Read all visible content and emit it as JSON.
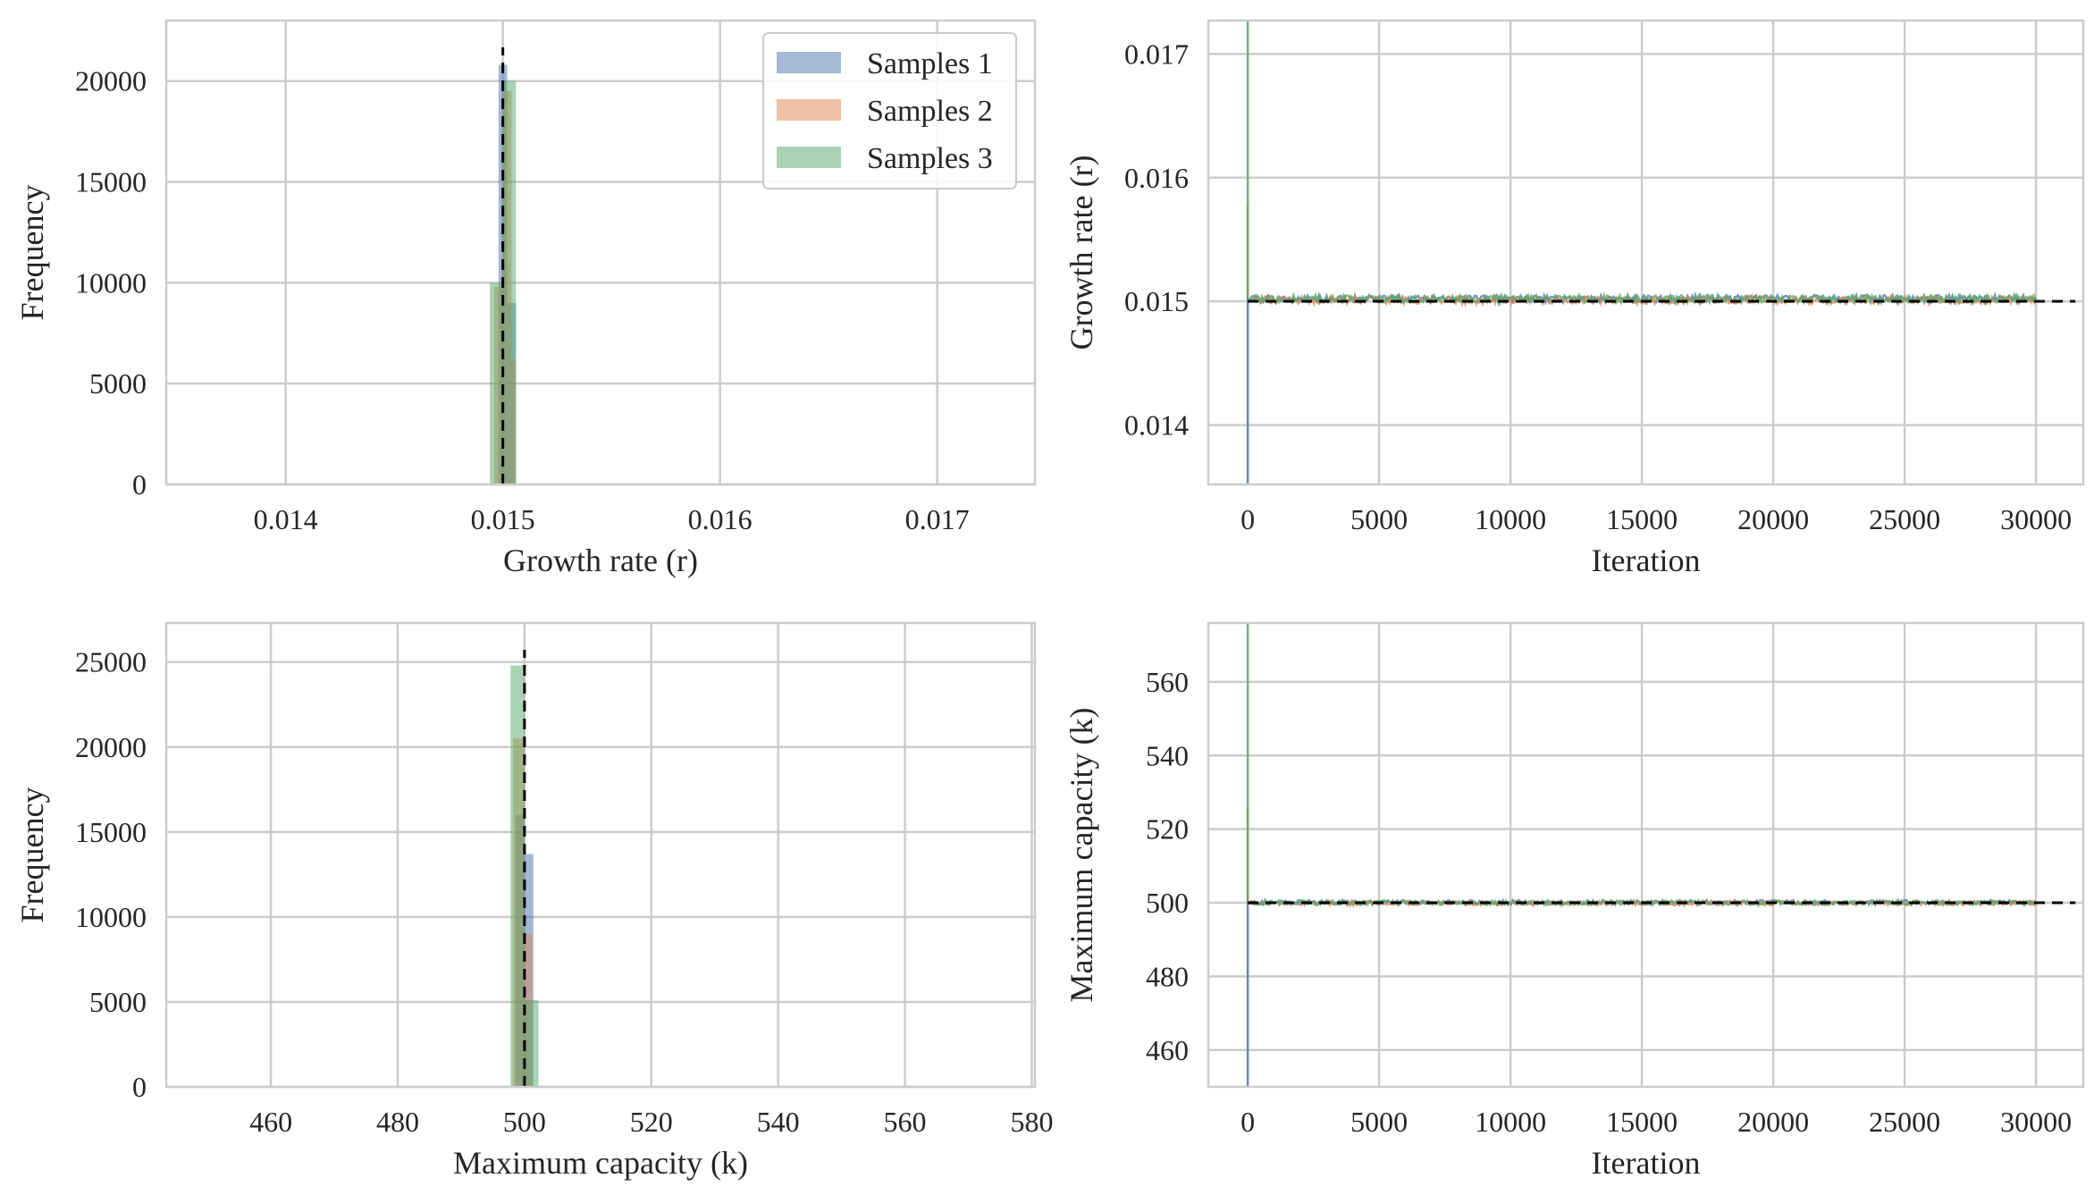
{
  "colors": {
    "Samples 1": "#4c72b0",
    "Samples 2": "#dd8452",
    "Samples 3": "#55a868"
  },
  "legend": {
    "placement": "top-right",
    "entries": [
      "Samples 1",
      "Samples 2",
      "Samples 3"
    ]
  },
  "chart_data": [
    {
      "type": "histogram",
      "xlabel": "Growth rate (r)",
      "ylabel": "Frequency",
      "xlim": [
        0.01345,
        0.01745
      ],
      "ylim": [
        0,
        23000
      ],
      "xticks": [
        "0.014",
        "0.015",
        "0.016",
        "0.017"
      ],
      "yticks": [
        "0",
        "5000",
        "10000",
        "15000",
        "20000"
      ],
      "grid": true,
      "reference_value": 0.015,
      "series": [
        {
          "name": "Samples 1",
          "bins": [
            {
              "x0": 0.01498,
              "x1": 0.01502,
              "count": 20800
            },
            {
              "x0": 0.01502,
              "x1": 0.01506,
              "count": 9000
            }
          ]
        },
        {
          "name": "Samples 2",
          "bins": [
            {
              "x0": 0.01496,
              "x1": 0.015,
              "count": 9800
            },
            {
              "x0": 0.015,
              "x1": 0.01504,
              "count": 19500
            },
            {
              "x0": 0.01504,
              "x1": 0.01506,
              "count": 6200
            }
          ]
        },
        {
          "name": "Samples 3",
          "bins": [
            {
              "x0": 0.01494,
              "x1": 0.015,
              "count": 10000
            },
            {
              "x0": 0.015,
              "x1": 0.01506,
              "count": 20000
            }
          ]
        }
      ]
    },
    {
      "type": "line",
      "xlabel": "Iteration",
      "ylabel": "Growth rate (r)",
      "xlim": [
        -1500,
        31800
      ],
      "ylim": [
        0.01352,
        0.01727
      ],
      "xticks": [
        "0",
        "5000",
        "10000",
        "15000",
        "20000",
        "25000",
        "30000"
      ],
      "yticks": [
        "0.014",
        "0.015",
        "0.016",
        "0.017"
      ],
      "grid": true,
      "reference_value": 0.015,
      "reference_range": [
        0,
        31500
      ],
      "n_iterations": 30000,
      "series": [
        {
          "name": "Samples 1",
          "start": 0.01352,
          "mean": 0.01502,
          "noise": 3e-05
        },
        {
          "name": "Samples 2",
          "start": 0.01578,
          "mean": 0.01501,
          "noise": 3e-05
        },
        {
          "name": "Samples 3",
          "start": 0.01727,
          "mean": 0.01502,
          "noise": 3e-05
        }
      ]
    },
    {
      "type": "histogram",
      "xlabel": "Maximum capacity (k)",
      "ylabel": "Frequency",
      "xlim": [
        443.5,
        580.5
      ],
      "ylim": [
        0,
        27300
      ],
      "xticks": [
        "460",
        "480",
        "500",
        "520",
        "540",
        "560",
        "580"
      ],
      "yticks": [
        "0",
        "5000",
        "10000",
        "15000",
        "20000",
        "25000"
      ],
      "grid": true,
      "reference_value": 500,
      "series": [
        {
          "name": "Samples 1",
          "bins": [
            {
              "x0": 498.6,
              "x1": 500.0,
              "count": 16000
            },
            {
              "x0": 500.0,
              "x1": 501.4,
              "count": 13700
            }
          ]
        },
        {
          "name": "Samples 2",
          "bins": [
            {
              "x0": 498.2,
              "x1": 500.0,
              "count": 20500
            },
            {
              "x0": 500.0,
              "x1": 501.2,
              "count": 9000
            }
          ]
        },
        {
          "name": "Samples 3",
          "bins": [
            {
              "x0": 497.8,
              "x1": 500.0,
              "count": 24800
            },
            {
              "x0": 500.0,
              "x1": 502.2,
              "count": 5100
            }
          ]
        }
      ]
    },
    {
      "type": "line",
      "xlabel": "Iteration",
      "ylabel": "Maximum capacity (k)",
      "xlim": [
        -1500,
        31800
      ],
      "ylim": [
        450,
        576
      ],
      "xticks": [
        "0",
        "5000",
        "10000",
        "15000",
        "20000",
        "25000",
        "30000"
      ],
      "yticks": [
        "460",
        "480",
        "500",
        "520",
        "540",
        "560"
      ],
      "grid": true,
      "reference_value": 500,
      "reference_range": [
        0,
        31500
      ],
      "n_iterations": 30000,
      "series": [
        {
          "name": "Samples 1",
          "start": 450,
          "mean": 500.1,
          "noise": 0.6
        },
        {
          "name": "Samples 2",
          "start": 526,
          "mean": 499.9,
          "noise": 0.6
        },
        {
          "name": "Samples 3",
          "start": 576,
          "mean": 500.0,
          "noise": 0.6
        }
      ]
    }
  ]
}
